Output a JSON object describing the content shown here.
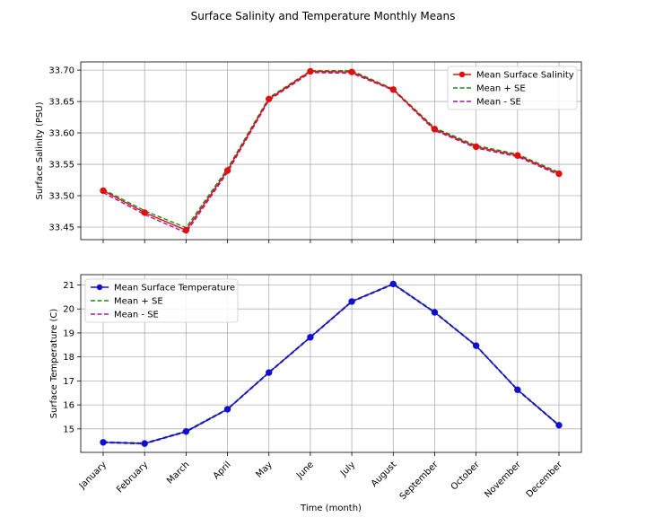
{
  "figure": {
    "title": "Surface Salinity and Temperature Monthly Means",
    "xlabel": "Time (month)"
  },
  "chart_data": [
    {
      "type": "line",
      "ylabel": "Surface Salinity (PSU)",
      "categories": [
        "January",
        "February",
        "March",
        "April",
        "May",
        "June",
        "July",
        "August",
        "September",
        "October",
        "November",
        "December"
      ],
      "ylim": [
        33.43,
        33.713
      ],
      "yticks": [
        "33.45",
        "33.50",
        "33.55",
        "33.60",
        "33.65",
        "33.70"
      ],
      "grid": true,
      "legend_position": "top-right",
      "series": [
        {
          "name": "Mean Surface Salinity",
          "color": "#e01010",
          "style": "solid",
          "markers": true,
          "values": [
            33.508,
            33.473,
            33.445,
            33.54,
            33.654,
            33.698,
            33.697,
            33.669,
            33.606,
            33.578,
            33.564,
            33.535
          ]
        },
        {
          "name": "Mean + SE",
          "color": "#1a8a1a",
          "style": "dashed",
          "markers": false,
          "values": [
            33.51,
            33.476,
            33.449,
            33.543,
            33.656,
            33.699,
            33.699,
            33.67,
            33.608,
            33.58,
            33.566,
            33.537
          ]
        },
        {
          "name": "Mean - SE",
          "color": "#9b1aa0",
          "style": "dashed",
          "markers": false,
          "values": [
            33.505,
            33.47,
            33.441,
            33.537,
            33.652,
            33.696,
            33.695,
            33.668,
            33.604,
            33.576,
            33.562,
            33.533
          ]
        }
      ]
    },
    {
      "type": "line",
      "ylabel": "Surface Temperature (C)",
      "categories": [
        "January",
        "February",
        "March",
        "April",
        "May",
        "June",
        "July",
        "August",
        "September",
        "October",
        "November",
        "December"
      ],
      "ylim": [
        14.02,
        21.43
      ],
      "yticks": [
        "15",
        "16",
        "17",
        "18",
        "19",
        "20",
        "21"
      ],
      "grid": true,
      "legend_position": "top-left",
      "series": [
        {
          "name": "Mean Surface Temperature",
          "color": "#1010d0",
          "style": "solid",
          "markers": true,
          "values": [
            14.44,
            14.39,
            14.89,
            15.82,
            17.35,
            18.82,
            20.31,
            21.04,
            19.86,
            18.47,
            16.63,
            15.15
          ]
        },
        {
          "name": "Mean + SE",
          "color": "#1a8a1a",
          "style": "dashed",
          "markers": false,
          "values": [
            14.46,
            14.41,
            14.91,
            15.84,
            17.37,
            18.84,
            20.33,
            21.06,
            19.88,
            18.49,
            16.65,
            15.17
          ]
        },
        {
          "name": "Mean - SE",
          "color": "#9b1aa0",
          "style": "dashed",
          "markers": false,
          "values": [
            14.42,
            14.37,
            14.87,
            15.8,
            17.33,
            18.8,
            20.29,
            21.02,
            19.84,
            18.45,
            16.61,
            15.13
          ]
        }
      ]
    }
  ]
}
